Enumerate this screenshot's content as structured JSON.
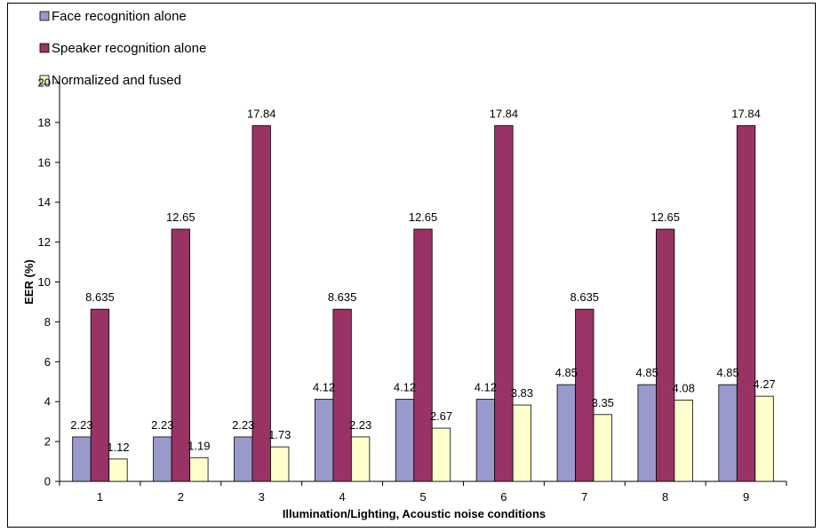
{
  "chart_data": {
    "type": "bar",
    "title": "",
    "xlabel": "Illumination/Lighting, Acoustic noise conditions",
    "ylabel": "EER (%)",
    "ylim": [
      0,
      20
    ],
    "yticks": [
      0,
      2,
      4,
      6,
      8,
      10,
      12,
      14,
      16,
      18,
      20
    ],
    "categories": [
      "1",
      "2",
      "3",
      "4",
      "5",
      "6",
      "7",
      "8",
      "9"
    ],
    "series": [
      {
        "name": "Face recognition alone",
        "color": "#9999cc",
        "values": [
          2.23,
          2.23,
          2.23,
          4.12,
          4.12,
          4.12,
          4.85,
          4.85,
          4.85
        ],
        "labels": [
          "2.23",
          "2.23",
          "2.23",
          "4.12",
          "4.12",
          "4.12",
          "4.85",
          "4.85",
          "4.85"
        ]
      },
      {
        "name": "Speaker recognition alone",
        "color": "#993366",
        "values": [
          8.635,
          12.65,
          17.84,
          8.635,
          12.65,
          17.84,
          8.635,
          12.65,
          17.84
        ],
        "labels": [
          "8.635",
          "12.65",
          "17.84",
          "8.635",
          "12.65",
          "17.84",
          "8.635",
          "12.65",
          "17.84"
        ]
      },
      {
        "name": "Normalized and fused",
        "color": "#ffffcc",
        "values": [
          1.12,
          1.19,
          1.73,
          2.23,
          2.67,
          3.83,
          3.35,
          4.08,
          4.27
        ],
        "labels": [
          "1.12",
          "1.19",
          "1.73",
          "2.23",
          "2.67",
          "3.83",
          "3.35",
          "4.08",
          "4.27"
        ]
      }
    ],
    "legend_position": "top-left",
    "grid": false
  }
}
